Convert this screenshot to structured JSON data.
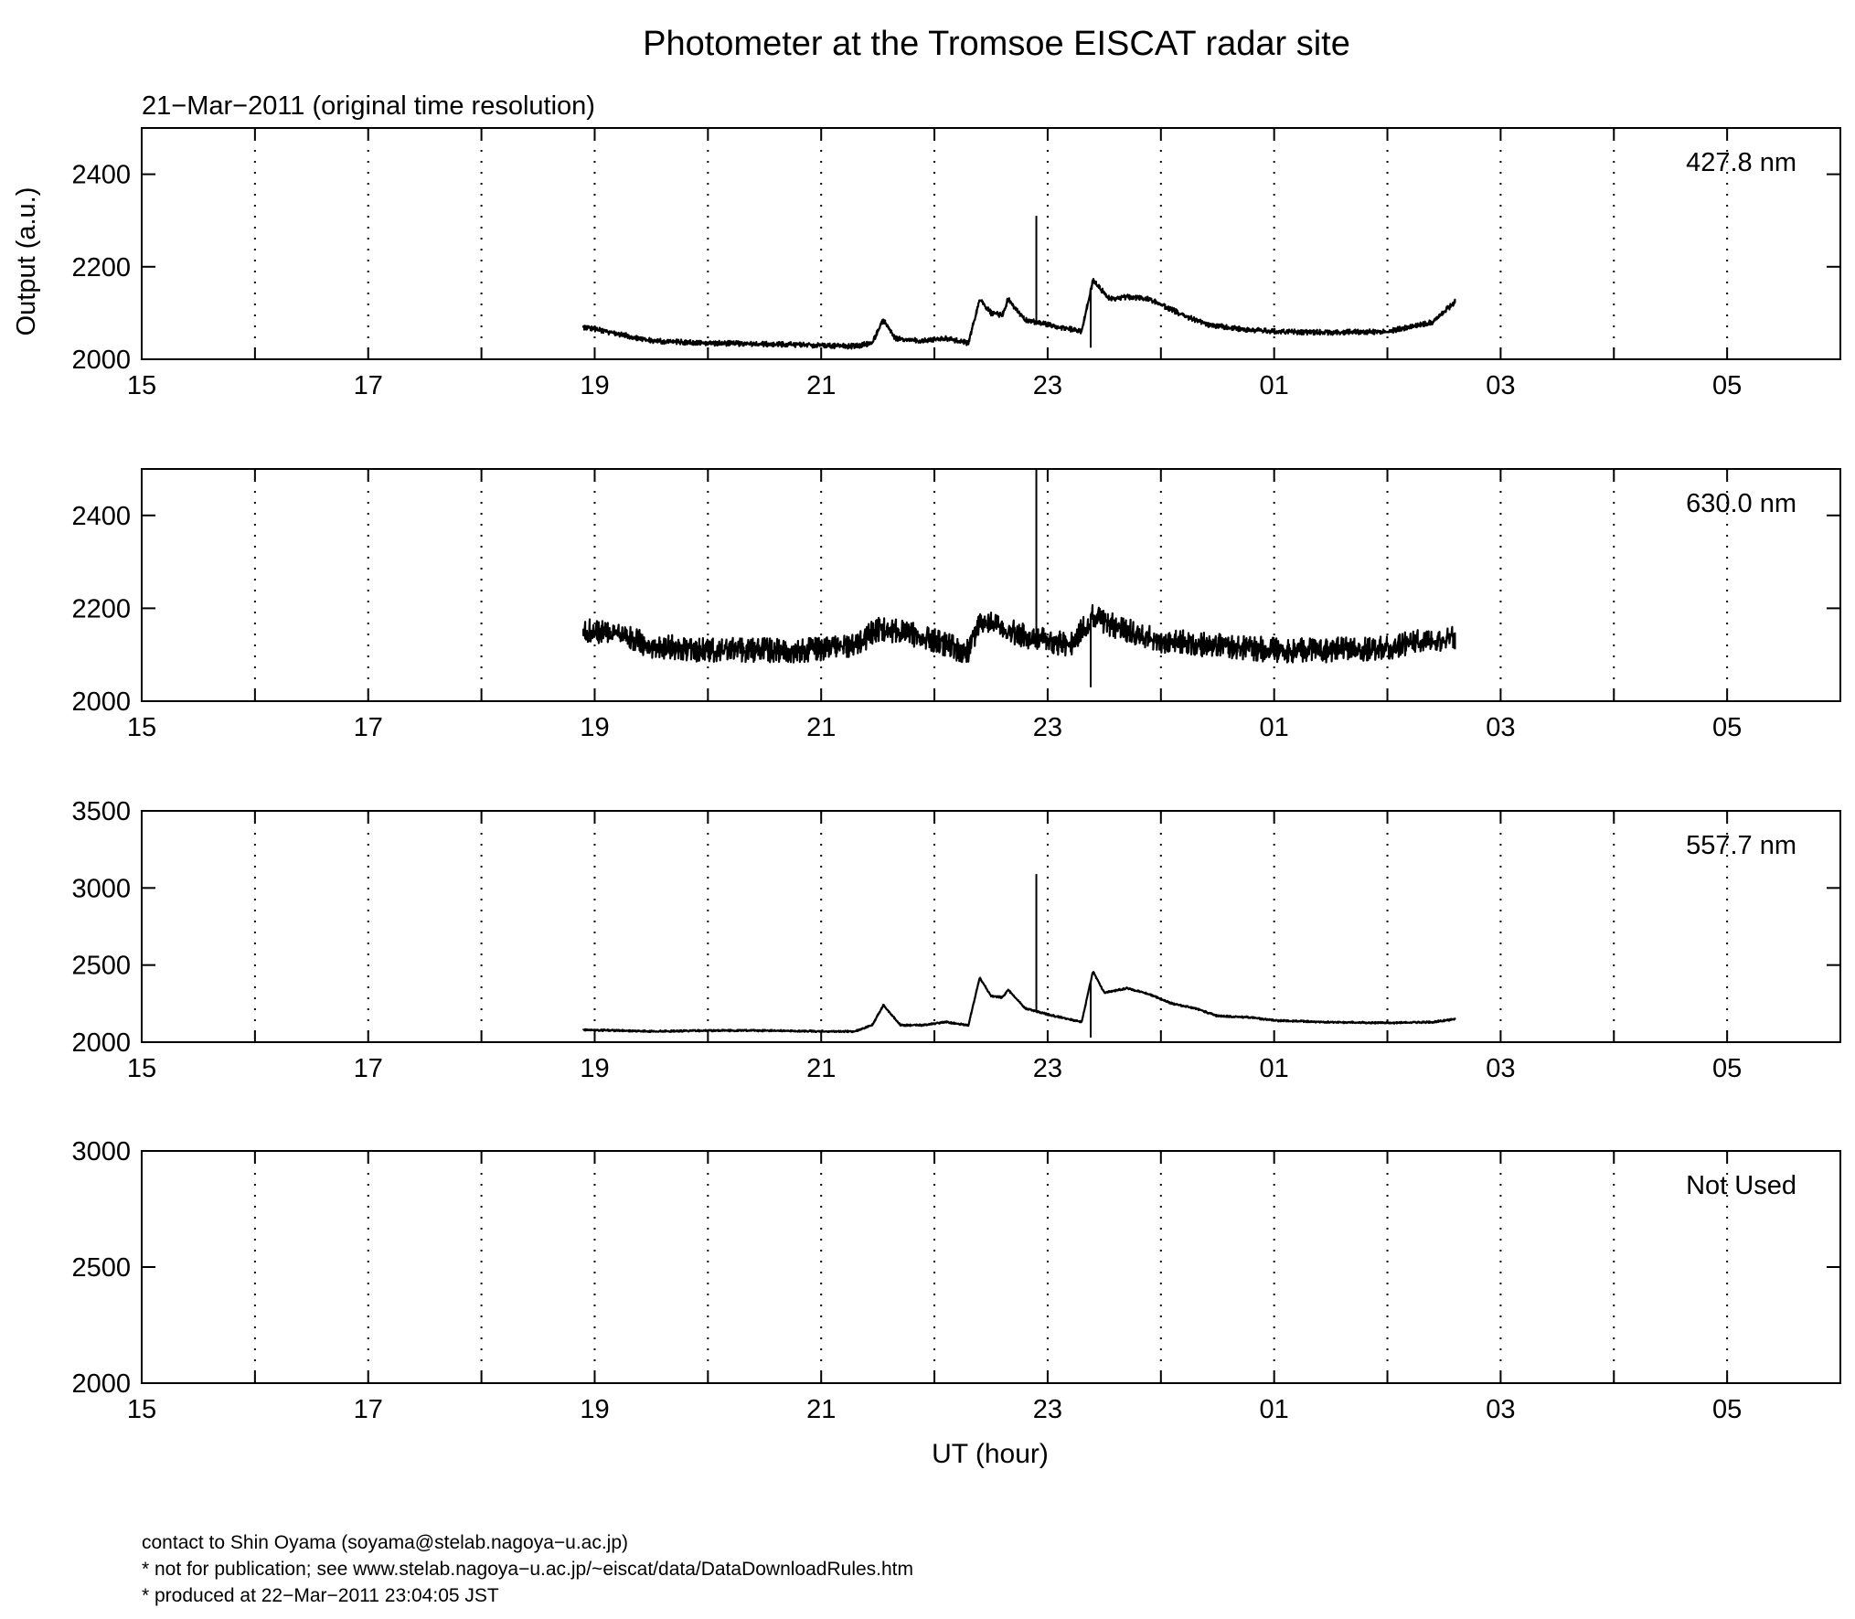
{
  "chart_data": {
    "type": "line",
    "title": "Photometer at the Tromsoe EISCAT radar site",
    "subtitle": "21−Mar−2011 (original time resolution)",
    "xlabel": "UT (hour)",
    "ylabel": "Output (a.u.)",
    "x_ticks": [
      "15",
      "17",
      "19",
      "21",
      "23",
      "01",
      "03",
      "05"
    ],
    "x_range_hours": [
      15,
      30
    ],
    "grid": "vertical dotted lines every hour",
    "line_color": "#000000",
    "panels": [
      {
        "channel": "427.8 nm",
        "ylim": [
          2000,
          2500
        ],
        "yticks": [
          "2000",
          "2200",
          "2400"
        ],
        "series": {
          "x": [
            18.9,
            19.2,
            19.5,
            20.0,
            20.5,
            21.0,
            21.3,
            21.45,
            21.55,
            21.65,
            21.9,
            22.1,
            22.3,
            22.4,
            22.5,
            22.6,
            22.65,
            22.8,
            23.0,
            23.3,
            23.4,
            23.55,
            23.7,
            23.9,
            24.2,
            24.4,
            24.7,
            25.0,
            25.5,
            26.0,
            26.4,
            26.6
          ],
          "y": [
            2070,
            2055,
            2040,
            2035,
            2033,
            2030,
            2028,
            2035,
            2085,
            2045,
            2040,
            2045,
            2035,
            2130,
            2100,
            2095,
            2130,
            2085,
            2075,
            2060,
            2170,
            2130,
            2135,
            2130,
            2095,
            2075,
            2065,
            2060,
            2058,
            2060,
            2080,
            2125
          ],
          "spikes": [
            {
              "x": 22.9,
              "y": 2310
            },
            {
              "x": 23.38,
              "y": 2025
            }
          ],
          "noise": 8
        }
      },
      {
        "channel": "630.0 nm",
        "ylim": [
          2000,
          2500
        ],
        "yticks": [
          "2000",
          "2200",
          "2400"
        ],
        "series": {
          "x": [
            18.9,
            19.1,
            19.5,
            20.0,
            20.5,
            21.0,
            21.3,
            21.5,
            21.7,
            22.0,
            22.3,
            22.4,
            22.6,
            22.9,
            23.2,
            23.4,
            23.6,
            24.0,
            24.5,
            25.0,
            25.5,
            26.0,
            26.3,
            26.6
          ],
          "y": [
            2150,
            2150,
            2120,
            2110,
            2110,
            2110,
            2120,
            2155,
            2150,
            2130,
            2105,
            2175,
            2155,
            2135,
            2120,
            2185,
            2160,
            2130,
            2120,
            2110,
            2110,
            2115,
            2130,
            2135
          ],
          "spikes": [
            {
              "x": 22.9,
              "y": 2500
            },
            {
              "x": 23.38,
              "y": 2030
            }
          ],
          "noise": 38
        }
      },
      {
        "channel": "557.7 nm",
        "ylim": [
          2000,
          3500
        ],
        "yticks": [
          "2000",
          "2500",
          "3000",
          "3500"
        ],
        "series": {
          "x": [
            18.9,
            19.5,
            20.0,
            20.5,
            21.0,
            21.3,
            21.45,
            21.55,
            21.7,
            21.9,
            22.1,
            22.3,
            22.4,
            22.5,
            22.6,
            22.65,
            22.8,
            23.0,
            23.3,
            23.4,
            23.5,
            23.7,
            23.9,
            24.1,
            24.3,
            24.5,
            24.8,
            25.0,
            25.5,
            26.0,
            26.4,
            26.6
          ],
          "y": [
            2080,
            2070,
            2075,
            2075,
            2070,
            2070,
            2110,
            2240,
            2110,
            2110,
            2130,
            2110,
            2420,
            2300,
            2290,
            2340,
            2220,
            2180,
            2130,
            2460,
            2320,
            2350,
            2310,
            2250,
            2220,
            2170,
            2160,
            2140,
            2130,
            2125,
            2130,
            2150
          ],
          "spikes": [
            {
              "x": 22.9,
              "y": 3090
            },
            {
              "x": 23.38,
              "y": 2030
            }
          ],
          "noise": 8
        }
      },
      {
        "channel": "Not Used",
        "ylim": [
          2000,
          3000
        ],
        "yticks": [
          "2000",
          "2500",
          "3000"
        ],
        "series": null
      }
    ]
  },
  "footer": {
    "line1": "contact to Shin Oyama (soyama@stelab.nagoya−u.ac.jp)",
    "line2": "* not for publication; see www.stelab.nagoya−u.ac.jp/~eiscat/data/DataDownloadRules.htm",
    "line3": "* produced at 22−Mar−2011 23:04:05 JST"
  }
}
